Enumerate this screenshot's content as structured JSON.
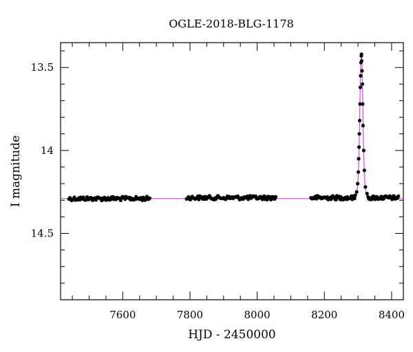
{
  "chart_data": {
    "type": "scatter",
    "title": "OGLE-2018-BLG-1178",
    "xlabel": "HJD - 2450000",
    "ylabel": "I magnitude",
    "xlim": [
      7415,
      8435
    ],
    "ylim": [
      14.9,
      13.35
    ],
    "y_inverted": true,
    "grid": false,
    "legend": "none",
    "x_ticks": [
      7600,
      7800,
      8000,
      8200,
      8400
    ],
    "y_ticks": [
      13.5,
      14,
      14.5
    ],
    "x_minor_step": 50,
    "y_minor_step": 0.1,
    "baseline_mag": 14.29,
    "series": [
      {
        "kind": "observations",
        "color": "#000000",
        "segments": [
          {
            "x_start": 7440,
            "x_end": 7680,
            "n": 90,
            "mag": 14.29,
            "scatter": 0.012
          },
          {
            "x_start": 7790,
            "x_end": 8055,
            "n": 95,
            "mag": 14.285,
            "scatter": 0.012
          },
          {
            "x_start": 8160,
            "x_end": 8290,
            "n": 55,
            "mag": 14.285,
            "scatter": 0.012
          },
          {
            "x_start": 8330,
            "x_end": 8420,
            "n": 40,
            "mag": 14.285,
            "scatter": 0.012
          }
        ],
        "peak_points": [
          [
            8292,
            14.27
          ],
          [
            8296,
            14.25
          ],
          [
            8299,
            14.2
          ],
          [
            8301,
            14.13
          ],
          [
            8302,
            14.05
          ],
          [
            8303,
            13.98
          ],
          [
            8304,
            13.9
          ],
          [
            8305,
            13.82
          ],
          [
            8306,
            13.72
          ],
          [
            8307,
            13.62
          ],
          [
            8308,
            13.55
          ],
          [
            8309,
            13.47
          ],
          [
            8310,
            13.43
          ],
          [
            8310.5,
            13.42
          ],
          [
            8311,
            13.46
          ],
          [
            8312,
            13.52
          ],
          [
            8313,
            13.6
          ],
          [
            8314,
            13.72
          ],
          [
            8315,
            13.85
          ],
          [
            8317,
            14.0
          ],
          [
            8319,
            14.12
          ],
          [
            8322,
            14.22
          ],
          [
            8327,
            14.26
          ]
        ]
      },
      {
        "kind": "model",
        "color": "#e040e0",
        "peak_x": 8310,
        "peak_mag": 13.42,
        "width": 6.5
      }
    ]
  }
}
